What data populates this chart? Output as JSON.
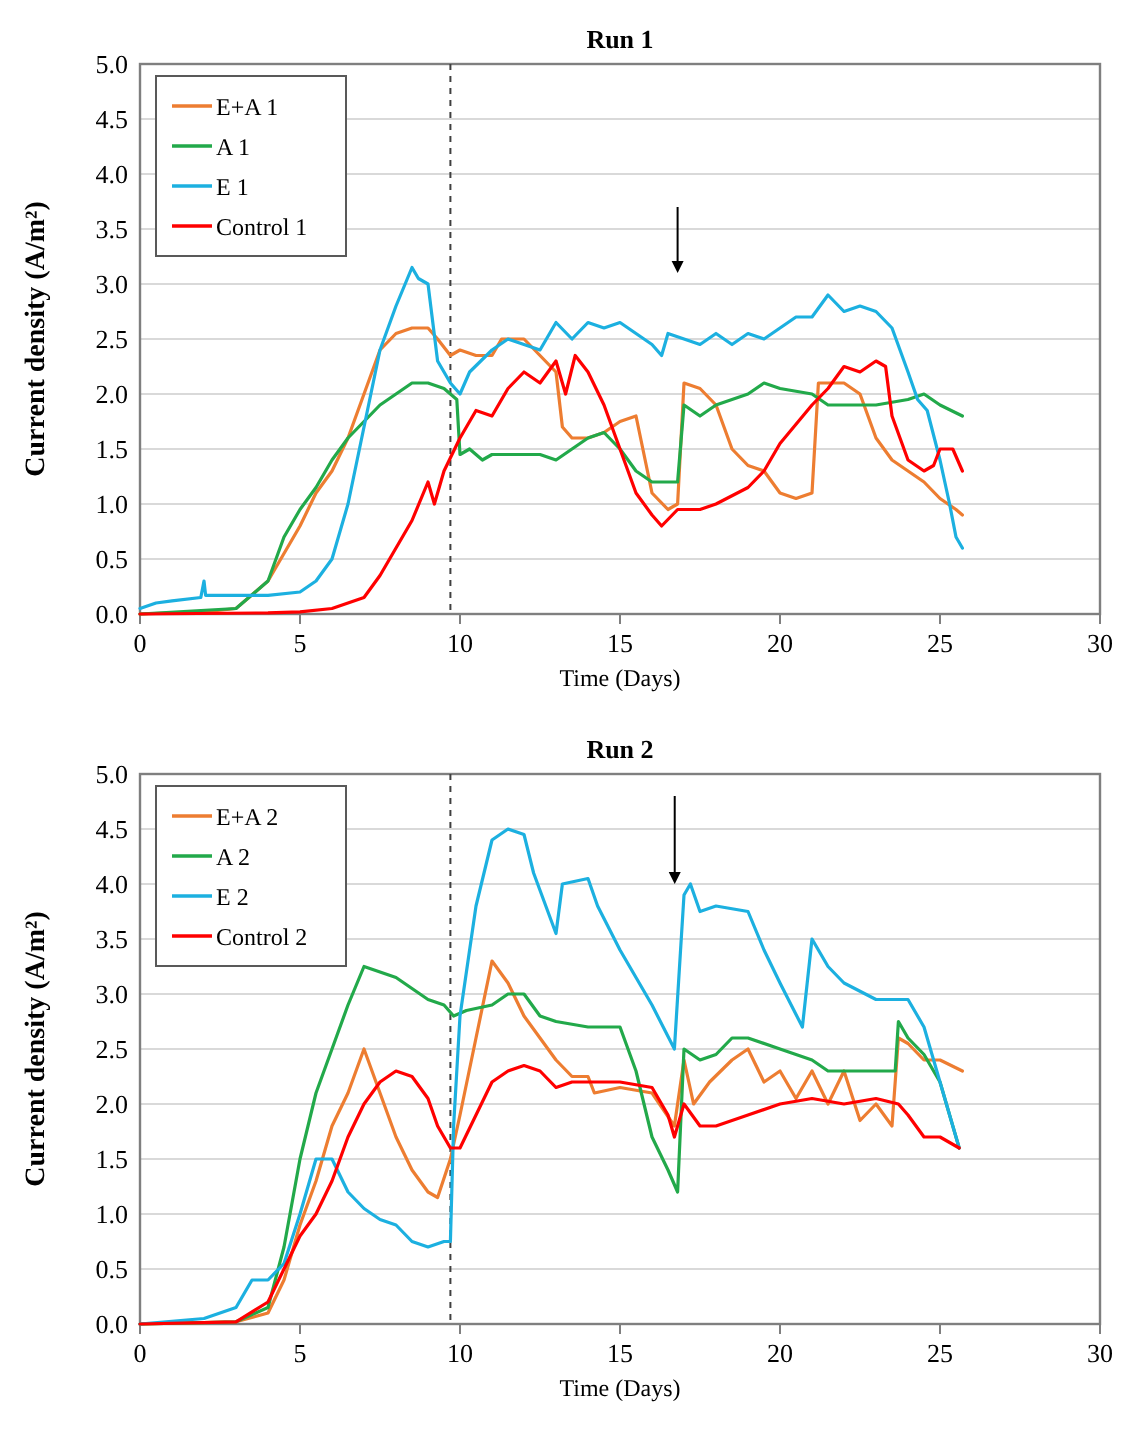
{
  "chart_data": [
    {
      "type": "line",
      "title": "Run 1",
      "xlabel": "Time (Days)",
      "ylabel": "Current density (A/m²)",
      "xlim": [
        0,
        30
      ],
      "xticks": [
        0,
        5,
        10,
        15,
        20,
        25,
        30
      ],
      "ylim": [
        0,
        5
      ],
      "yticks": [
        {
          "value": 0,
          "label": "0.0"
        },
        0.5,
        {
          "value": 1,
          "label": "1.0"
        },
        1.5,
        {
          "value": 2,
          "label": "2.0"
        },
        2.5,
        {
          "value": 3,
          "label": "3.0"
        },
        3.5,
        {
          "value": 4,
          "label": "4.0"
        },
        4.5,
        {
          "value": 5,
          "label": "5.0"
        }
      ],
      "grid": "y",
      "legend": "top left",
      "marker": "none",
      "line_style": "solid",
      "ref_lines": [
        {
          "axis": "x",
          "value": 9.7,
          "label": null,
          "color": "#404040",
          "line_style": "dashed"
        }
      ],
      "series": [
        {
          "name": "E+A 1",
          "color": "#ed7d31",
          "x": [
            0,
            2,
            3,
            4,
            5,
            5.5,
            6,
            6.5,
            7,
            7.5,
            8,
            8.5,
            9,
            9.3,
            9.7,
            10,
            10.5,
            11,
            11.3,
            12,
            12.5,
            13,
            13.2,
            13.5,
            14,
            14.5,
            15,
            15.5,
            16,
            16.5,
            16.8,
            17,
            17.5,
            18,
            18.5,
            19,
            19.5,
            20,
            20.5,
            21,
            21.2,
            22,
            22.5,
            23,
            23.5,
            24,
            24.5,
            25,
            25.5,
            25.7
          ],
          "values": [
            0,
            0.02,
            0.05,
            0.3,
            0.8,
            1.1,
            1.3,
            1.6,
            2.0,
            2.4,
            2.55,
            2.6,
            2.6,
            2.5,
            2.35,
            2.4,
            2.35,
            2.35,
            2.5,
            2.5,
            2.35,
            2.2,
            1.7,
            1.6,
            1.6,
            1.65,
            1.75,
            1.8,
            1.1,
            0.95,
            1.0,
            2.1,
            2.05,
            1.9,
            1.5,
            1.35,
            1.3,
            1.1,
            1.05,
            1.1,
            2.1,
            2.1,
            2.0,
            1.6,
            1.4,
            1.3,
            1.2,
            1.05,
            0.95,
            0.9
          ]
        },
        {
          "name": "A 1",
          "color": "#22a94a",
          "x": [
            0,
            3,
            4,
            4.5,
            5,
            5.5,
            6,
            6.5,
            7,
            7.5,
            8,
            8.5,
            9,
            9.5,
            9.9,
            10,
            10.3,
            10.7,
            11,
            12,
            12.5,
            13,
            13.5,
            14,
            14.5,
            15,
            15.5,
            16,
            16.5,
            16.8,
            17,
            17.5,
            18,
            19,
            19.5,
            20,
            21,
            21.5,
            22,
            23,
            24,
            24.5,
            25,
            25.7
          ],
          "values": [
            0,
            0.05,
            0.3,
            0.7,
            0.95,
            1.15,
            1.4,
            1.6,
            1.75,
            1.9,
            2.0,
            2.1,
            2.1,
            2.05,
            1.95,
            1.45,
            1.5,
            1.4,
            1.45,
            1.45,
            1.45,
            1.4,
            1.5,
            1.6,
            1.65,
            1.5,
            1.3,
            1.2,
            1.2,
            1.2,
            1.9,
            1.8,
            1.9,
            2.0,
            2.1,
            2.05,
            2.0,
            1.9,
            1.9,
            1.9,
            1.95,
            2.0,
            1.9,
            1.8
          ]
        },
        {
          "name": "E 1",
          "color": "#1cb0e0",
          "x": [
            0,
            0.5,
            1,
            1.9,
            2,
            2.05,
            3,
            4,
            5,
            5.5,
            6,
            6.5,
            7,
            7.5,
            8,
            8.5,
            8.7,
            9,
            9.3,
            9.7,
            10,
            10.3,
            11,
            11.5,
            12,
            12.5,
            13,
            13.5,
            14,
            14.5,
            15,
            15.5,
            16,
            16.3,
            16.5,
            17,
            17.5,
            18,
            18.5,
            19,
            19.5,
            20,
            20.5,
            21,
            21.5,
            22,
            22.5,
            23,
            23.5,
            24,
            24.3,
            24.6,
            25,
            25.3,
            25.5,
            25.7
          ],
          "values": [
            0.05,
            0.1,
            0.12,
            0.15,
            0.3,
            0.17,
            0.17,
            0.17,
            0.2,
            0.3,
            0.5,
            1.0,
            1.7,
            2.4,
            2.8,
            3.15,
            3.05,
            3.0,
            2.3,
            2.1,
            2.0,
            2.2,
            2.4,
            2.5,
            2.45,
            2.4,
            2.65,
            2.5,
            2.65,
            2.6,
            2.65,
            2.55,
            2.45,
            2.35,
            2.55,
            2.5,
            2.45,
            2.55,
            2.45,
            2.55,
            2.5,
            2.6,
            2.7,
            2.7,
            2.9,
            2.75,
            2.8,
            2.75,
            2.6,
            2.2,
            1.95,
            1.85,
            1.4,
            1.0,
            0.7,
            0.6
          ]
        },
        {
          "name": "Control 1",
          "color": "#ff0000",
          "x": [
            0,
            4,
            5,
            6,
            7,
            7.5,
            8,
            8.5,
            9,
            9.2,
            9.5,
            10,
            10.5,
            11,
            11.5,
            12,
            12.5,
            13,
            13.3,
            13.6,
            14,
            14.5,
            15,
            15.5,
            16,
            16.3,
            16.8,
            17.5,
            18,
            19,
            19.5,
            20,
            21,
            21.5,
            22,
            22.5,
            23,
            23.3,
            23.5,
            24,
            24.5,
            24.8,
            25,
            25.4,
            25.7
          ],
          "values": [
            0,
            0.01,
            0.02,
            0.05,
            0.15,
            0.35,
            0.6,
            0.85,
            1.2,
            1.0,
            1.3,
            1.6,
            1.85,
            1.8,
            2.05,
            2.2,
            2.1,
            2.3,
            2.0,
            2.35,
            2.2,
            1.9,
            1.5,
            1.1,
            0.9,
            0.8,
            0.95,
            0.95,
            1.0,
            1.15,
            1.3,
            1.55,
            1.9,
            2.05,
            2.25,
            2.2,
            2.3,
            2.25,
            1.8,
            1.4,
            1.3,
            1.35,
            1.5,
            1.5,
            1.3
          ]
        }
      ]
    },
    {
      "type": "line",
      "title": "Run 2",
      "xlabel": "Time (Days)",
      "ylabel": "Current density (A/m²)",
      "xlim": [
        0,
        30
      ],
      "xticks": [
        0,
        5,
        10,
        15,
        20,
        25,
        30
      ],
      "ylim": [
        0,
        5
      ],
      "yticks": [
        {
          "value": 0,
          "label": "0.0"
        },
        0.5,
        {
          "value": 1,
          "label": "1.0"
        },
        1.5,
        {
          "value": 2,
          "label": "2.0"
        },
        2.5,
        {
          "value": 3,
          "label": "3.0"
        },
        3.5,
        {
          "value": 4,
          "label": "4.0"
        },
        4.5,
        {
          "value": 5,
          "label": "5.0"
        }
      ],
      "grid": "y",
      "legend": "top left",
      "marker": "none",
      "line_style": "solid",
      "ref_lines": [
        {
          "axis": "x",
          "value": 9.7,
          "label": null,
          "color": "#404040",
          "line_style": "dashed"
        }
      ],
      "series": [
        {
          "name": "E+A 2",
          "color": "#ed7d31",
          "x": [
            0,
            3,
            4,
            4.5,
            5,
            5.5,
            6,
            6.5,
            7,
            7.5,
            8,
            8.5,
            9,
            9.3,
            9.7,
            10,
            10.5,
            11,
            11.5,
            12,
            12.5,
            13,
            13.5,
            14,
            14.2,
            15,
            16,
            16.7,
            17,
            17.3,
            17.8,
            18.5,
            19,
            19.5,
            20,
            20.5,
            21,
            21.5,
            22,
            22.5,
            23,
            23.5,
            23.7,
            24,
            24.5,
            25,
            25.7
          ],
          "values": [
            0,
            0.02,
            0.1,
            0.4,
            0.9,
            1.3,
            1.8,
            2.1,
            2.5,
            2.1,
            1.7,
            1.4,
            1.2,
            1.15,
            1.5,
            1.9,
            2.6,
            3.3,
            3.1,
            2.8,
            2.6,
            2.4,
            2.25,
            2.25,
            2.1,
            2.15,
            2.1,
            1.8,
            2.4,
            2.0,
            2.2,
            2.4,
            2.5,
            2.2,
            2.3,
            2.05,
            2.3,
            2.0,
            2.3,
            1.85,
            2.0,
            1.8,
            2.6,
            2.55,
            2.4,
            2.4,
            2.3
          ]
        },
        {
          "name": "A 2",
          "color": "#22a94a",
          "x": [
            0,
            3,
            4,
            4.5,
            5,
            5.5,
            6,
            6.5,
            7,
            7.5,
            8,
            8.5,
            9,
            9.5,
            9.8,
            10.2,
            11,
            11.5,
            12,
            12.5,
            13,
            14,
            15,
            15.5,
            16,
            16.5,
            16.8,
            17,
            17.5,
            18,
            18.5,
            19,
            20,
            21,
            21.5,
            22,
            23,
            23.6,
            23.7,
            24,
            24.5,
            25,
            25.6
          ],
          "values": [
            0,
            0.02,
            0.15,
            0.7,
            1.5,
            2.1,
            2.5,
            2.9,
            3.25,
            3.2,
            3.15,
            3.05,
            2.95,
            2.9,
            2.8,
            2.85,
            2.9,
            3.0,
            3.0,
            2.8,
            2.75,
            2.7,
            2.7,
            2.3,
            1.7,
            1.4,
            1.2,
            2.5,
            2.4,
            2.45,
            2.6,
            2.6,
            2.5,
            2.4,
            2.3,
            2.3,
            2.3,
            2.3,
            2.75,
            2.6,
            2.45,
            2.2,
            1.6
          ]
        },
        {
          "name": "E 2",
          "color": "#1cb0e0",
          "x": [
            0,
            2,
            3,
            3.5,
            4,
            4.5,
            5,
            5.5,
            6,
            6.5,
            7,
            7.5,
            8,
            8.5,
            9,
            9.5,
            9.7,
            9.8,
            10,
            10.5,
            11,
            11.5,
            12,
            12.3,
            13,
            13.2,
            14,
            14.3,
            15,
            16,
            16.7,
            17,
            17.2,
            17.5,
            18,
            19,
            19.5,
            20,
            20.7,
            21,
            21.5,
            22,
            23,
            24,
            24.5,
            25,
            25.6
          ],
          "values": [
            0,
            0.05,
            0.15,
            0.4,
            0.4,
            0.55,
            1.0,
            1.5,
            1.5,
            1.2,
            1.05,
            0.95,
            0.9,
            0.75,
            0.7,
            0.75,
            0.75,
            1.8,
            2.8,
            3.8,
            4.4,
            4.5,
            4.45,
            4.1,
            3.55,
            4.0,
            4.05,
            3.8,
            3.4,
            2.9,
            2.5,
            3.9,
            4.0,
            3.75,
            3.8,
            3.75,
            3.4,
            3.1,
            2.7,
            3.5,
            3.25,
            3.1,
            2.95,
            2.95,
            2.7,
            2.2,
            1.6
          ]
        },
        {
          "name": "Control 2",
          "color": "#ff0000",
          "x": [
            0,
            3,
            4,
            4.5,
            5,
            5.5,
            6,
            6.5,
            7,
            7.5,
            8,
            8.5,
            9,
            9.3,
            9.7,
            10,
            10.5,
            11,
            11.5,
            12,
            12.5,
            13,
            13.5,
            14,
            15,
            16,
            16.5,
            16.7,
            17,
            17.5,
            18,
            19,
            20,
            21,
            22,
            23,
            23.7,
            24,
            24.5,
            25,
            25.6
          ],
          "values": [
            0,
            0.02,
            0.2,
            0.5,
            0.8,
            1.0,
            1.3,
            1.7,
            2.0,
            2.2,
            2.3,
            2.25,
            2.05,
            1.8,
            1.6,
            1.6,
            1.9,
            2.2,
            2.3,
            2.35,
            2.3,
            2.15,
            2.2,
            2.2,
            2.2,
            2.15,
            1.9,
            1.7,
            2.0,
            1.8,
            1.8,
            1.9,
            2.0,
            2.05,
            2.0,
            2.05,
            2.0,
            1.9,
            1.7,
            1.7,
            1.6
          ]
        }
      ]
    }
  ]
}
